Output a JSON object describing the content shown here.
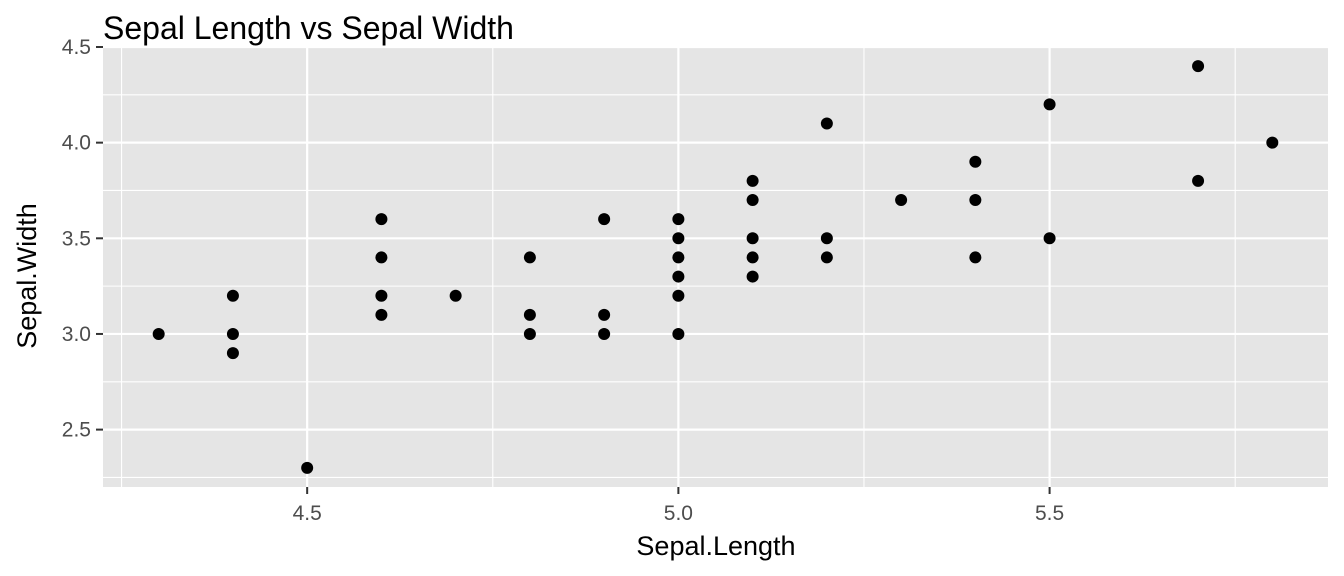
{
  "chart_data": {
    "type": "scatter",
    "title": "Sepal Length vs Sepal Width",
    "xlabel": "Sepal.Length",
    "ylabel": "Sepal.Width",
    "xlim": [
      4.225,
      5.875
    ],
    "ylim": [
      2.2,
      4.5
    ],
    "x_ticks": [
      4.5,
      5.0,
      5.5
    ],
    "x_tick_labels": [
      "4.5",
      "5.0",
      "5.5"
    ],
    "y_ticks": [
      2.5,
      3.0,
      3.5,
      4.0,
      4.5
    ],
    "y_tick_labels": [
      "2.5",
      "3.0",
      "3.5",
      "4.0",
      "4.5"
    ],
    "x_minor_grid": [
      4.25,
      4.75,
      5.25,
      5.75
    ],
    "y_minor_grid": [
      2.25,
      2.75,
      3.25,
      3.75,
      4.25
    ],
    "grid": true,
    "legend": "none",
    "colors": {
      "panel": "#e5e5e5",
      "grid": "#ffffff",
      "point": "#000000",
      "tick_text": "#4d4d4d"
    },
    "points": [
      {
        "x": 4.3,
        "y": 3.0
      },
      {
        "x": 4.4,
        "y": 3.2
      },
      {
        "x": 4.4,
        "y": 3.0
      },
      {
        "x": 4.4,
        "y": 2.9
      },
      {
        "x": 4.5,
        "y": 2.3
      },
      {
        "x": 4.6,
        "y": 3.6
      },
      {
        "x": 4.6,
        "y": 3.4
      },
      {
        "x": 4.6,
        "y": 3.2
      },
      {
        "x": 4.6,
        "y": 3.1
      },
      {
        "x": 4.7,
        "y": 3.2
      },
      {
        "x": 4.8,
        "y": 3.4
      },
      {
        "x": 4.8,
        "y": 3.1
      },
      {
        "x": 4.8,
        "y": 3.0
      },
      {
        "x": 4.9,
        "y": 3.6
      },
      {
        "x": 4.9,
        "y": 3.1
      },
      {
        "x": 4.9,
        "y": 3.0
      },
      {
        "x": 5.0,
        "y": 3.6
      },
      {
        "x": 5.0,
        "y": 3.5
      },
      {
        "x": 5.0,
        "y": 3.4
      },
      {
        "x": 5.0,
        "y": 3.3
      },
      {
        "x": 5.0,
        "y": 3.2
      },
      {
        "x": 5.0,
        "y": 3.0
      },
      {
        "x": 5.1,
        "y": 3.8
      },
      {
        "x": 5.1,
        "y": 3.7
      },
      {
        "x": 5.1,
        "y": 3.5
      },
      {
        "x": 5.1,
        "y": 3.4
      },
      {
        "x": 5.1,
        "y": 3.3
      },
      {
        "x": 5.2,
        "y": 4.1
      },
      {
        "x": 5.2,
        "y": 3.5
      },
      {
        "x": 5.2,
        "y": 3.4
      },
      {
        "x": 5.3,
        "y": 3.7
      },
      {
        "x": 5.4,
        "y": 3.9
      },
      {
        "x": 5.4,
        "y": 3.7
      },
      {
        "x": 5.4,
        "y": 3.4
      },
      {
        "x": 5.5,
        "y": 4.2
      },
      {
        "x": 5.5,
        "y": 3.5
      },
      {
        "x": 5.7,
        "y": 4.4
      },
      {
        "x": 5.7,
        "y": 3.8
      },
      {
        "x": 5.8,
        "y": 4.0
      }
    ]
  }
}
